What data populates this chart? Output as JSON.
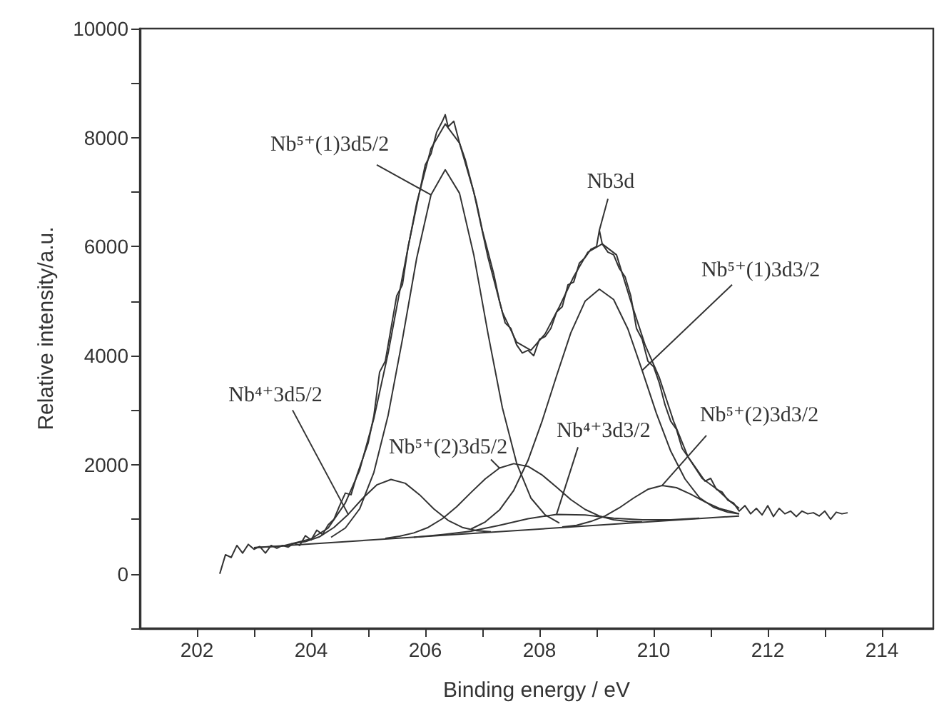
{
  "chart_data": {
    "type": "line",
    "xlabel": "Binding energy / eV",
    "ylabel": "Relative intensity/a.u.",
    "xlim": [
      201,
      214.9
    ],
    "ylim": [
      -1000,
      10000
    ],
    "xticks": [
      202,
      {
        "value": 203,
        "label": null
      },
      204,
      {
        "value": 205,
        "label": null
      },
      206,
      {
        "value": 207,
        "label": null
      },
      208,
      {
        "value": 209,
        "label": null
      },
      210,
      {
        "value": 211,
        "label": null
      },
      212,
      {
        "value": 213,
        "label": null
      },
      214
    ],
    "yticks": [
      {
        "value": -1000,
        "label": null
      },
      0,
      {
        "value": 1000,
        "label": null
      },
      2000,
      {
        "value": 3000,
        "label": null
      },
      4000,
      {
        "value": 5000,
        "label": null
      },
      6000,
      {
        "value": 7000,
        "label": null
      },
      8000,
      {
        "value": 9000,
        "label": null
      },
      10000
    ],
    "grid": false,
    "legend": false,
    "marker": "none",
    "line_style": "solid",
    "series": [
      {
        "name": "Nb3d",
        "color": "#333333",
        "x": [
          202.4,
          202.5,
          202.6,
          202.7,
          202.8,
          202.9,
          203.0,
          203.1,
          203.2,
          203.3,
          203.4,
          203.5,
          203.6,
          203.7,
          203.8,
          203.9,
          204.0,
          204.1,
          204.2,
          204.3,
          204.4,
          204.5,
          204.6,
          204.7,
          204.8,
          204.9,
          205.0,
          205.1,
          205.2,
          205.3,
          205.4,
          205.5,
          205.6,
          205.7,
          205.8,
          205.9,
          206.0,
          206.1,
          206.2,
          206.3,
          206.35,
          206.4,
          206.5,
          206.6,
          206.7,
          206.8,
          206.9,
          207.0,
          207.1,
          207.2,
          207.3,
          207.4,
          207.5,
          207.6,
          207.7,
          207.8,
          207.9,
          208.0,
          208.1,
          208.2,
          208.3,
          208.4,
          208.5,
          208.6,
          208.7,
          208.8,
          208.9,
          209.0,
          209.05,
          209.1,
          209.2,
          209.3,
          209.4,
          209.5,
          209.6,
          209.7,
          209.8,
          209.9,
          210.0,
          210.1,
          210.2,
          210.3,
          210.4,
          210.5,
          210.6,
          210.7,
          210.8,
          210.9,
          211.0,
          211.1,
          211.2,
          211.3,
          211.4,
          211.5,
          211.6,
          211.7,
          211.8,
          211.9,
          212.0,
          212.1,
          212.2,
          212.3,
          212.4,
          212.5,
          212.6,
          212.7,
          212.8,
          212.9,
          213.0,
          213.1,
          213.2,
          213.3,
          213.4
        ],
        "values": [
          0,
          350,
          300,
          520,
          380,
          540,
          450,
          500,
          380,
          520,
          470,
          520,
          490,
          560,
          520,
          700,
          620,
          800,
          720,
          900,
          1000,
          1250,
          1480,
          1450,
          1800,
          2100,
          2400,
          2900,
          3700,
          3900,
          4500,
          5100,
          5300,
          6000,
          6500,
          7000,
          7500,
          7700,
          8100,
          8300,
          8420,
          8200,
          8300,
          7900,
          7600,
          7200,
          6800,
          6300,
          5900,
          5500,
          5000,
          4600,
          4500,
          4200,
          4050,
          4100,
          4000,
          4300,
          4350,
          4500,
          4800,
          4900,
          5300,
          5350,
          5700,
          5800,
          5950,
          6000,
          6300,
          6050,
          5900,
          5850,
          5600,
          5450,
          5100,
          4500,
          4300,
          3900,
          3800,
          3500,
          3100,
          2800,
          2650,
          2300,
          2150,
          2000,
          1850,
          1700,
          1750,
          1550,
          1500,
          1350,
          1300,
          1150,
          1250,
          1100,
          1200,
          1080,
          1250,
          1050,
          1200,
          1100,
          1150,
          1050,
          1150,
          1100,
          1120,
          1060,
          1150,
          1000,
          1130,
          1100,
          1120
        ]
      },
      {
        "color": "#333333",
        "x": [
          203.0,
          203.5,
          204.0,
          204.3,
          204.6,
          204.85,
          205.1,
          205.35,
          205.6,
          205.85,
          206.1,
          206.35,
          206.6,
          206.85,
          207.1,
          207.35,
          207.6,
          207.85,
          208.1,
          208.35,
          208.6,
          208.85,
          209.1,
          209.35,
          209.6,
          209.85,
          210.1,
          210.35,
          210.6,
          210.85,
          211.1,
          211.35,
          211.5
        ],
        "values": [
          480,
          510,
          640,
          840,
          1300,
          1900,
          2850,
          4050,
          5450,
          6800,
          7800,
          8250,
          7900,
          7000,
          5800,
          4800,
          4250,
          4100,
          4400,
          4900,
          5450,
          5900,
          6050,
          5850,
          5000,
          4200,
          3600,
          2800,
          2150,
          1750,
          1560,
          1320,
          1200
        ]
      },
      {
        "color": "#333333",
        "x": [
          203.0,
          211.5
        ],
        "values": [
          480,
          1060
        ]
      },
      {
        "name": "Nb⁵⁺(1)3d5/2",
        "color": "#333333",
        "x": [
          204.35,
          204.6,
          204.85,
          205.1,
          205.35,
          205.6,
          205.85,
          206.1,
          206.35,
          206.6,
          206.85,
          207.1,
          207.35,
          207.6,
          207.85,
          208.1,
          208.35
        ],
        "values": [
          670,
          840,
          1190,
          1860,
          2910,
          4300,
          5790,
          6950,
          7410,
          6980,
          5850,
          4400,
          3050,
          2030,
          1390,
          1080,
          930
        ]
      },
      {
        "name": "Nb⁵⁺(1)3d3/2",
        "color": "#333333",
        "x": [
          206.8,
          207.05,
          207.3,
          207.55,
          207.8,
          208.05,
          208.3,
          208.55,
          208.8,
          209.05,
          209.3,
          209.55,
          209.8,
          210.05,
          210.3,
          210.55,
          210.8,
          211.05,
          211.3,
          211.5
        ],
        "values": [
          820,
          950,
          1170,
          1530,
          2080,
          2810,
          3630,
          4420,
          5000,
          5220,
          5030,
          4490,
          3730,
          2940,
          2250,
          1740,
          1400,
          1220,
          1130,
          1100
        ]
      },
      {
        "name": "Nb⁴⁺3d5/2",
        "color": "#333333",
        "x": [
          203.65,
          203.9,
          204.15,
          204.4,
          204.65,
          204.9,
          205.15,
          205.4,
          205.65,
          205.9,
          206.15,
          206.4,
          206.65,
          206.9,
          207.15
        ],
        "values": [
          550,
          590,
          680,
          850,
          1090,
          1380,
          1630,
          1730,
          1660,
          1450,
          1190,
          980,
          850,
          790,
          770
        ]
      },
      {
        "name": "Nb⁵⁺(2)3d5/2",
        "color": "#333333",
        "x": [
          205.3,
          205.55,
          205.8,
          206.05,
          206.3,
          206.55,
          206.8,
          207.05,
          207.3,
          207.55,
          207.8,
          208.05,
          208.3,
          208.55,
          208.8,
          209.05,
          209.3,
          209.55,
          209.8
        ],
        "values": [
          650,
          690,
          750,
          850,
          1010,
          1230,
          1490,
          1740,
          1940,
          2020,
          1970,
          1810,
          1590,
          1360,
          1180,
          1060,
          990,
          960,
          950
        ]
      },
      {
        "name": "Nb⁴⁺3d3/2",
        "color": "#333333",
        "x": [
          205.8,
          206.3,
          206.8,
          207.3,
          207.8,
          208.3,
          208.8,
          209.3,
          209.8,
          210.3,
          210.8
        ],
        "values": [
          670,
          720,
          780,
          890,
          1010,
          1090,
          1080,
          1020,
          990,
          990,
          1020
        ]
      },
      {
        "name": "Nb⁵⁺(2)3d3/2",
        "color": "#333333",
        "x": [
          208.4,
          208.65,
          208.9,
          209.15,
          209.4,
          209.65,
          209.9,
          210.15,
          210.4,
          210.65,
          210.9,
          211.15,
          211.4,
          211.5
        ],
        "values": [
          860,
          890,
          960,
          1060,
          1210,
          1390,
          1550,
          1620,
          1580,
          1460,
          1320,
          1200,
          1130,
          1100
        ]
      }
    ]
  }
}
